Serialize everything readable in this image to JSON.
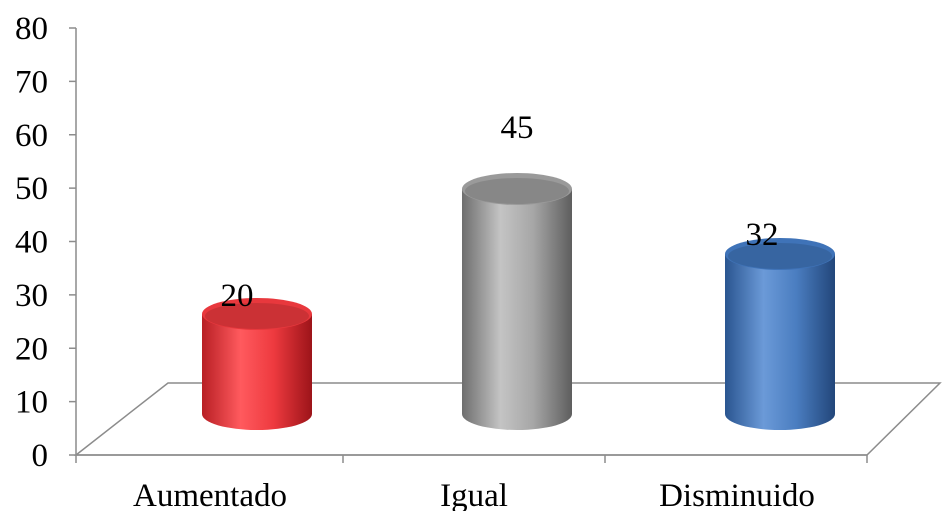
{
  "chart_data": {
    "type": "bar",
    "style": "3d-cylinder",
    "categories": [
      "Aumentado",
      "Igual",
      "Disminuido"
    ],
    "values": [
      20,
      45,
      32
    ],
    "colors": [
      "#e8383d",
      "#9a9a9a",
      "#3f73b8"
    ],
    "y_ticks": [
      "0",
      "10",
      "20",
      "30",
      "40",
      "50",
      "60",
      "70",
      "80"
    ],
    "ylim": [
      0,
      80
    ],
    "data_labels": [
      "20",
      "45",
      "32"
    ],
    "grid": false,
    "legend": "none"
  }
}
